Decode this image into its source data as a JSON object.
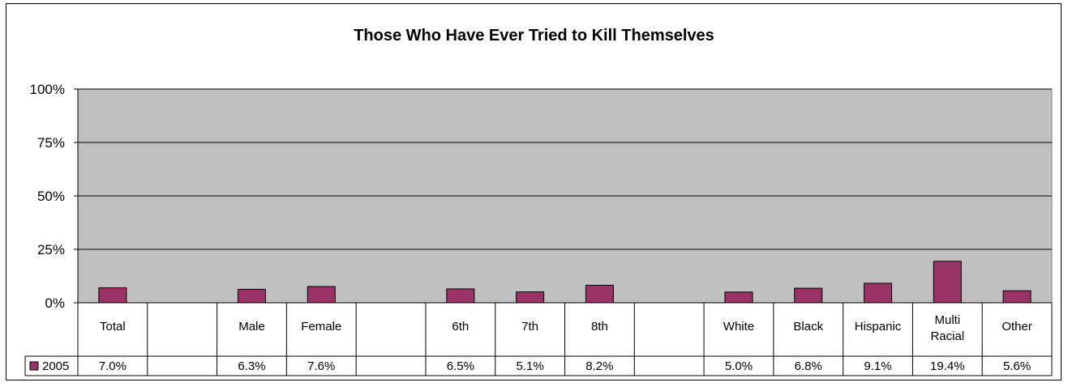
{
  "chart_data": {
    "type": "bar",
    "title": "Those Who Have Ever Tried to Kill Themselves",
    "categories": [
      "Total",
      "",
      "Male",
      "Female",
      "",
      "6th",
      "7th",
      "8th",
      "",
      "White",
      "Black",
      "Hispanic",
      "Multi Racial",
      "Other"
    ],
    "series": [
      {
        "name": "2005",
        "values": [
          7.0,
          null,
          6.3,
          7.6,
          null,
          6.5,
          5.1,
          8.2,
          null,
          5.0,
          6.8,
          9.1,
          19.4,
          5.6
        ],
        "labels": [
          "7.0%",
          "",
          "6.3%",
          "7.6%",
          "",
          "6.5%",
          "5.1%",
          "8.2%",
          "",
          "5.0%",
          "6.8%",
          "9.1%",
          "19.4%",
          "5.6%"
        ]
      }
    ],
    "ylim": [
      0,
      100
    ],
    "yticks": [
      0,
      25,
      50,
      75,
      100
    ],
    "ytick_labels": [
      "0%",
      "25%",
      "50%",
      "75%",
      "100%"
    ],
    "grid": true,
    "legend": "data-table",
    "colors": {
      "bar": "#993366",
      "plot_bg": "#c0c0c0"
    }
  }
}
